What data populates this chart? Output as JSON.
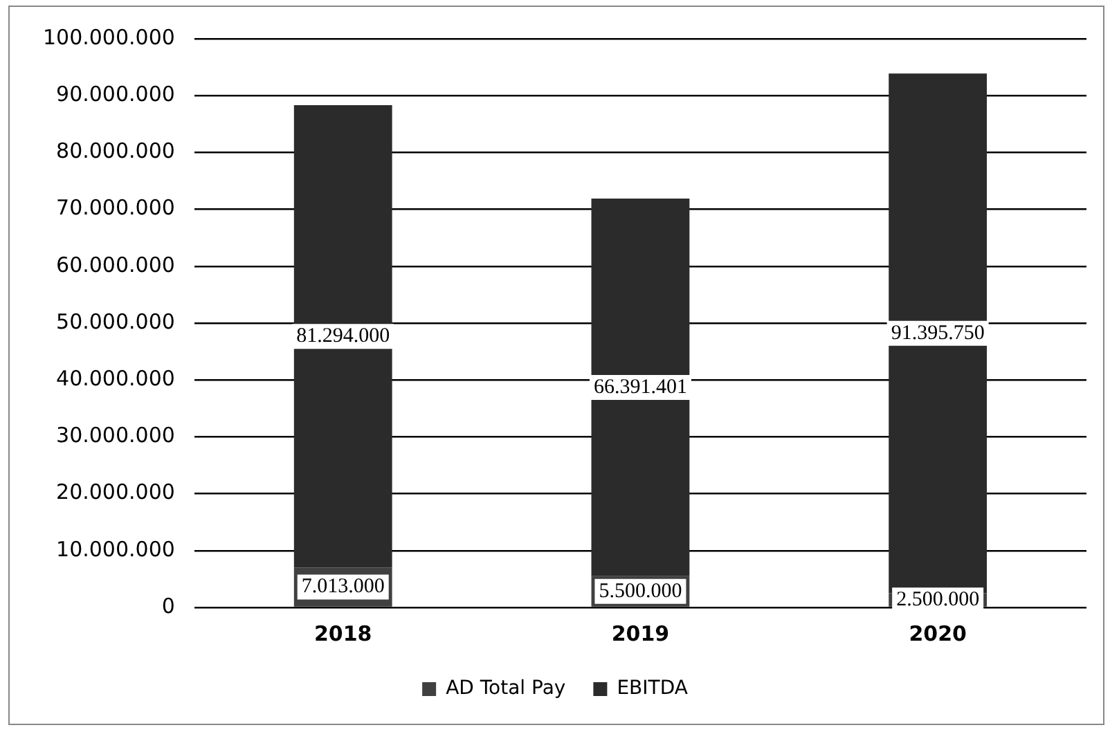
{
  "chart_data": {
    "type": "bar",
    "stacked": true,
    "categories": [
      "2018",
      "2019",
      "2020"
    ],
    "series": [
      {
        "name": "AD Total Pay",
        "color": "#404040",
        "values": [
          7013000,
          5500000,
          2500000
        ],
        "value_labels": [
          "7.013.000",
          "5.500.000",
          "2.500.000"
        ]
      },
      {
        "name": "EBITDA",
        "color": "#2b2b2b",
        "values": [
          81294000,
          66391401,
          91395750
        ],
        "value_labels": [
          "81.294.000",
          "66.391.401",
          "91.395.750"
        ]
      }
    ],
    "ylim": [
      0,
      100000000
    ],
    "yticks": [
      {
        "value": 0,
        "label": "0"
      },
      {
        "value": 10000000,
        "label": "10.000.000"
      },
      {
        "value": 20000000,
        "label": "20.000.000"
      },
      {
        "value": 30000000,
        "label": "30.000.000"
      },
      {
        "value": 40000000,
        "label": "40.000.000"
      },
      {
        "value": 50000000,
        "label": "50.000.000"
      },
      {
        "value": 60000000,
        "label": "60.000.000"
      },
      {
        "value": 70000000,
        "label": "70.000.000"
      },
      {
        "value": 80000000,
        "label": "80.000.000"
      },
      {
        "value": 90000000,
        "label": "90.000.000"
      },
      {
        "value": 100000000,
        "label": "100.000.000"
      }
    ],
    "grid": "y",
    "legend": "bottom"
  }
}
